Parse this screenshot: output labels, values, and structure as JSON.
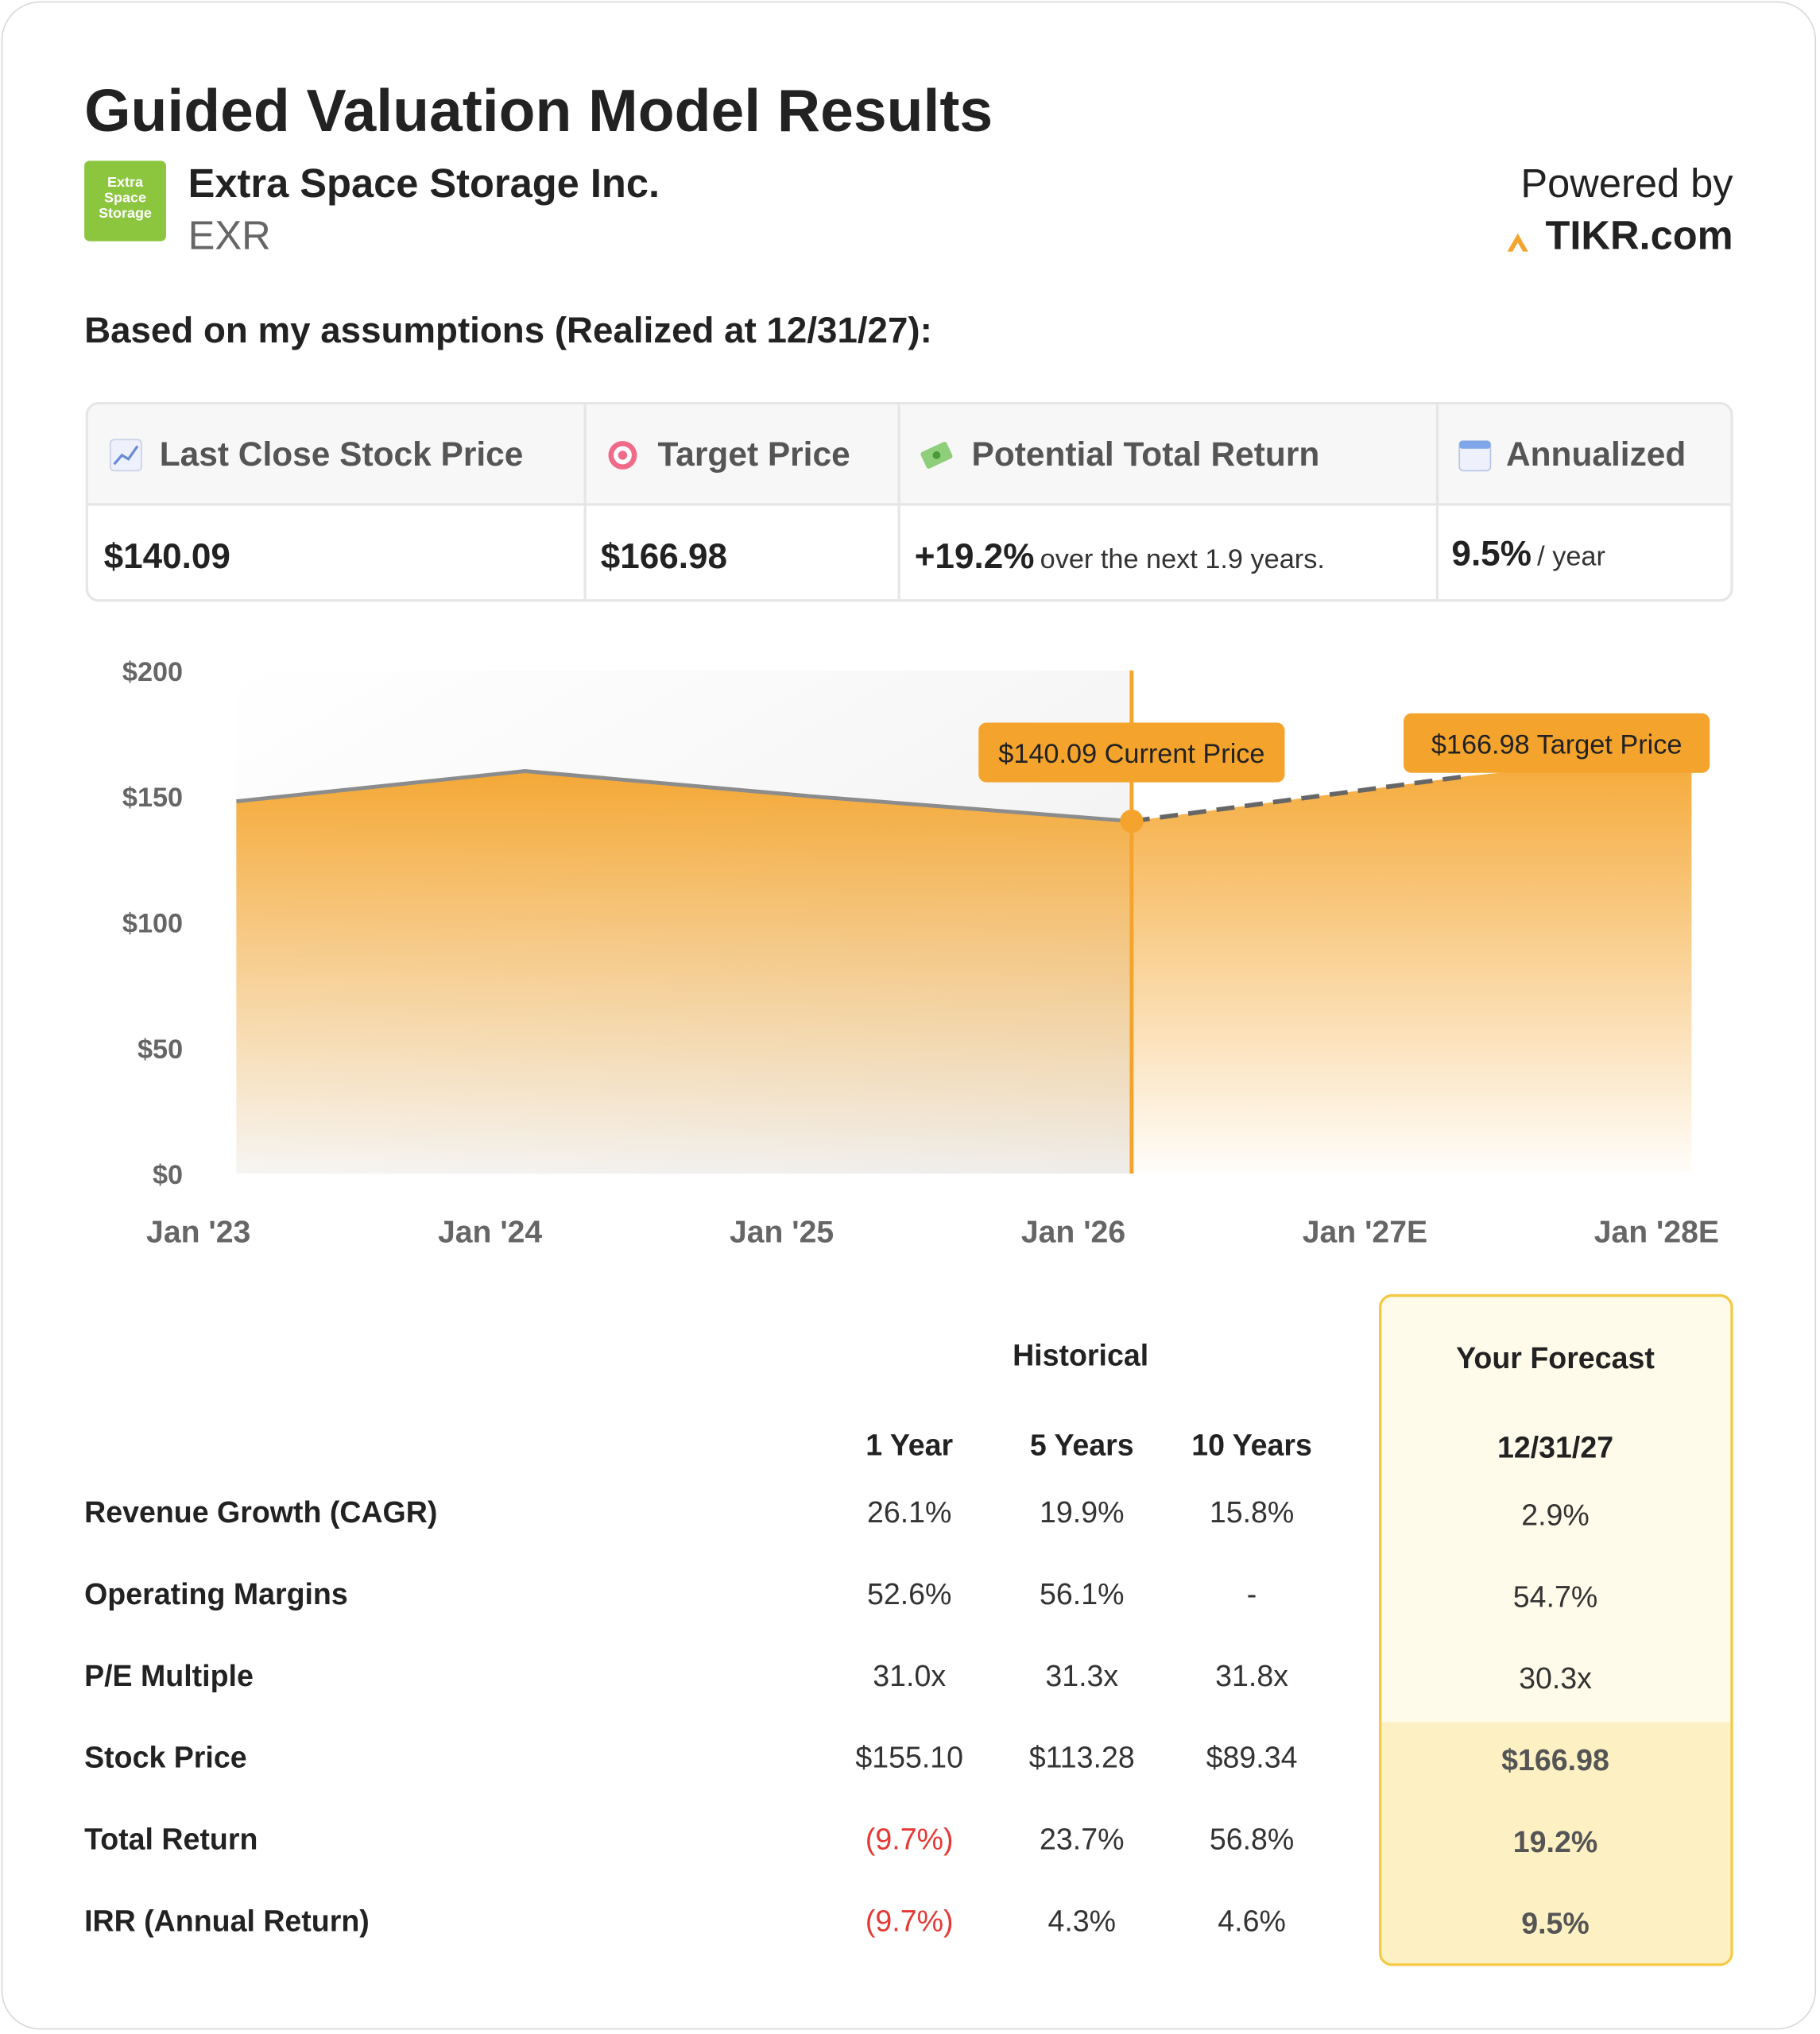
{
  "header": {
    "title": "Guided Valuation Model Results",
    "logo": [
      "Extra",
      "Space",
      "Storage"
    ],
    "company": "Extra Space Storage Inc.",
    "ticker": "EXR",
    "powered_by": "Powered by",
    "brand": "TIKR.com"
  },
  "subtitle": "Based on my assumptions (Realized at 12/31/27):",
  "summary": {
    "headers": [
      "Last Close Stock Price",
      "Target Price",
      "Potential Total Return",
      "Annualized"
    ],
    "cells": [
      {
        "main": "$140.09"
      },
      {
        "main": "$166.98"
      },
      {
        "main": "+19.2%",
        "note": "over the next 1.9 years."
      },
      {
        "main": "9.5%",
        "note": "/ year"
      }
    ]
  },
  "chart_data": {
    "type": "area",
    "series": [
      {
        "name": "Historical",
        "color": "#8c8c8c",
        "x": [
          2023.13,
          2024.12,
          2025.1,
          2026.2
        ],
        "values": [
          148,
          160,
          150,
          140.09
        ]
      },
      {
        "name": "Forecast",
        "color": "#666666",
        "x": [
          2026.2,
          2027.35,
          2028.12
        ],
        "values": [
          140.09,
          158,
          166.98
        ]
      }
    ],
    "fill_color": "#f4a42c",
    "annotations": [
      {
        "text": "$140.09 Current Price",
        "series": 0,
        "point": 3
      },
      {
        "text": "$166.98 Target Price",
        "series": 1,
        "point": 2
      }
    ],
    "xlim": [
      2022.8,
      2028.2
    ],
    "xticks": [
      {
        "value": 2023,
        "label": "Jan '23"
      },
      {
        "value": 2024,
        "label": "Jan '24"
      },
      {
        "value": 2025,
        "label": "Jan '25"
      },
      {
        "value": 2026,
        "label": "Jan '26"
      },
      {
        "value": 2027,
        "label": "Jan '27E"
      },
      {
        "value": 2028,
        "label": "Jan '28E"
      }
    ],
    "ylim": [
      0,
      200
    ],
    "yticks": [
      {
        "value": 0,
        "label": "$0"
      },
      {
        "value": 50,
        "label": "$50"
      },
      {
        "value": 100,
        "label": "$100"
      },
      {
        "value": 150,
        "label": "$150"
      },
      {
        "value": 200,
        "label": "$200"
      }
    ]
  },
  "table": {
    "groups": [
      "Historical",
      "Your Forecast"
    ],
    "columns": [
      "1 Year",
      "5 Years",
      "10 Years",
      "12/31/27"
    ],
    "rows": [
      {
        "label": "Revenue Growth (CAGR)",
        "values": [
          "26.1%",
          "19.9%",
          "15.8%",
          "2.9%"
        ]
      },
      {
        "label": "Operating Margins",
        "values": [
          "52.6%",
          "56.1%",
          "-",
          "54.7%"
        ]
      },
      {
        "label": "P/E Multiple",
        "values": [
          "31.0x",
          "31.3x",
          "31.8x",
          "30.3x"
        ]
      },
      {
        "label": "Stock Price",
        "values": [
          "$155.10",
          "$113.28",
          "$89.34",
          "$166.98"
        ]
      },
      {
        "label": "Total Return",
        "values": [
          "(9.7%)",
          "23.7%",
          "56.8%",
          "19.2%"
        ]
      },
      {
        "label": "IRR (Annual Return)",
        "values": [
          "(9.7%)",
          "4.3%",
          "4.6%",
          "9.5%"
        ]
      }
    ]
  }
}
